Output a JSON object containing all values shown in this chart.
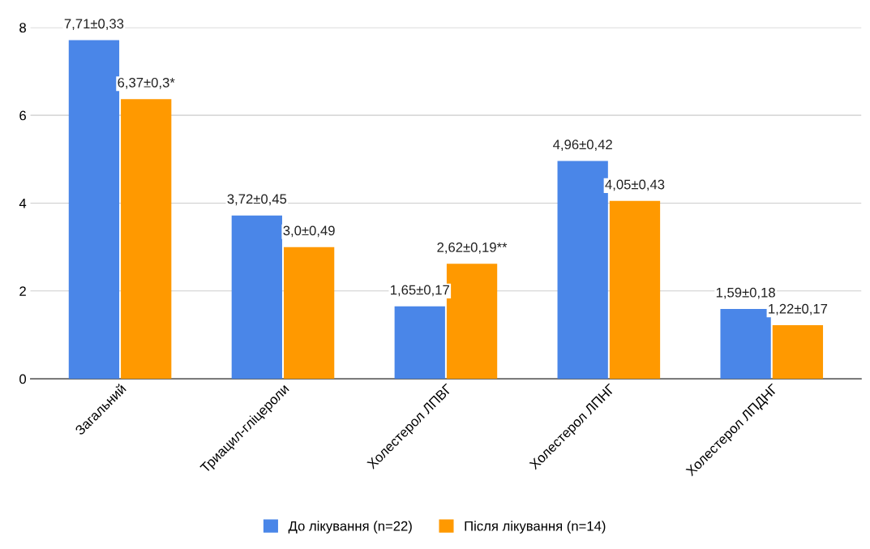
{
  "chart_data": {
    "type": "bar",
    "categories": [
      "Загальний",
      "Триацил-гліцероли",
      "Холестерол ЛПВГ",
      "Холестерол ЛПНГ",
      "Холестерол ЛПДНГ"
    ],
    "series": [
      {
        "name": "До лікування (n=22)",
        "color": "#4a86e8",
        "values": [
          7.71,
          3.72,
          1.65,
          4.96,
          1.59
        ],
        "value_labels": [
          "7,71±0,33",
          "3,72±0,45",
          "1,65±0,17",
          "4,96±0,42",
          "1,59±0,18"
        ]
      },
      {
        "name": "Після лікування (n=14)",
        "color": "#ff9900",
        "values": [
          6.37,
          3.0,
          2.62,
          4.05,
          1.22
        ],
        "value_labels": [
          "6,37±0,3*",
          "3,0±0,49",
          "2,62±0,19**",
          "4,05±0,43",
          "1,22±0,17"
        ]
      }
    ],
    "ylim": [
      0,
      8
    ],
    "yticks": [
      0,
      2,
      4,
      6,
      8
    ],
    "grid": "y",
    "legend": "bottom"
  }
}
